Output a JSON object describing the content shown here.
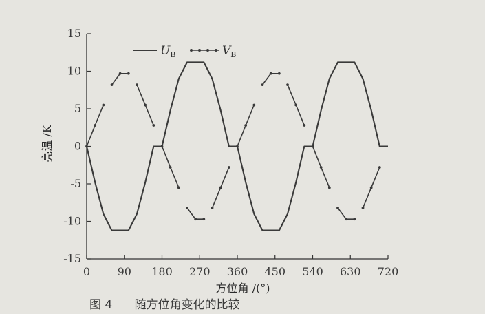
{
  "chart_data": {
    "type": "line",
    "x": [
      0,
      20,
      40,
      60,
      80,
      90,
      100,
      120,
      140,
      160,
      180,
      200,
      220,
      240,
      260,
      270,
      280,
      300,
      320,
      340,
      360,
      380,
      400,
      420,
      440,
      450,
      460,
      480,
      500,
      520,
      540,
      560,
      580,
      600,
      620,
      630,
      640,
      660,
      680,
      700,
      720
    ],
    "series": [
      {
        "name": "U",
        "name_sub": "B",
        "style": "line",
        "color": "#3a3a3a",
        "values": [
          0,
          -4.8,
          -9.0,
          -11.2,
          -11.2,
          -11.2,
          -11.2,
          -9.0,
          -4.8,
          0,
          0,
          4.8,
          9.0,
          11.2,
          11.2,
          11.2,
          11.2,
          9.0,
          4.8,
          0,
          0,
          -4.8,
          -9.0,
          -11.2,
          -11.2,
          -11.2,
          -11.2,
          -9.0,
          -4.8,
          0,
          0,
          4.8,
          9.0,
          11.2,
          11.2,
          11.2,
          11.2,
          9.0,
          4.8,
          0,
          0
        ]
      },
      {
        "name": "V",
        "name_sub": "B",
        "style": "line-markers",
        "color": "#3a3a3a",
        "segments": [
          {
            "x": [
              0,
              20,
              40
            ],
            "y": [
              0,
              2.8,
              5.5
            ]
          },
          {
            "x": [
              60,
              80,
              100
            ],
            "y": [
              8.2,
              9.7,
              9.7
            ]
          },
          {
            "x": [
              120,
              140,
              160
            ],
            "y": [
              8.2,
              5.5,
              2.8
            ]
          },
          {
            "x": [
              180,
              200,
              220
            ],
            "y": [
              0,
              -2.8,
              -5.5
            ]
          },
          {
            "x": [
              240,
              260,
              280
            ],
            "y": [
              -8.2,
              -9.7,
              -9.7
            ]
          },
          {
            "x": [
              300,
              320,
              340
            ],
            "y": [
              -8.2,
              -5.5,
              -2.8
            ]
          },
          {
            "x": [
              360,
              380,
              400
            ],
            "y": [
              0,
              2.8,
              5.5
            ]
          },
          {
            "x": [
              420,
              440,
              460
            ],
            "y": [
              8.2,
              9.7,
              9.7
            ]
          },
          {
            "x": [
              480,
              500,
              520
            ],
            "y": [
              8.2,
              5.5,
              2.8
            ]
          },
          {
            "x": [
              540,
              560,
              580
            ],
            "y": [
              0,
              -2.8,
              -5.5
            ]
          },
          {
            "x": [
              600,
              620,
              640
            ],
            "y": [
              -8.2,
              -9.7,
              -9.7
            ]
          },
          {
            "x": [
              660,
              680,
              700
            ],
            "y": [
              -8.2,
              -5.5,
              -2.8
            ]
          }
        ]
      }
    ],
    "xlim": [
      0,
      720
    ],
    "ylim": [
      -15,
      15
    ],
    "xticks": [
      0,
      90,
      180,
      270,
      360,
      450,
      540,
      630,
      720
    ],
    "yticks": [
      -15,
      -10,
      -5,
      0,
      5,
      10,
      15
    ],
    "xlabel": "方位角 /(°)",
    "ylabel": "亮温 /K",
    "legend_position": "top-left",
    "grid": false,
    "title": ""
  },
  "caption": {
    "text": "图 4      随方位角变化的比较"
  }
}
